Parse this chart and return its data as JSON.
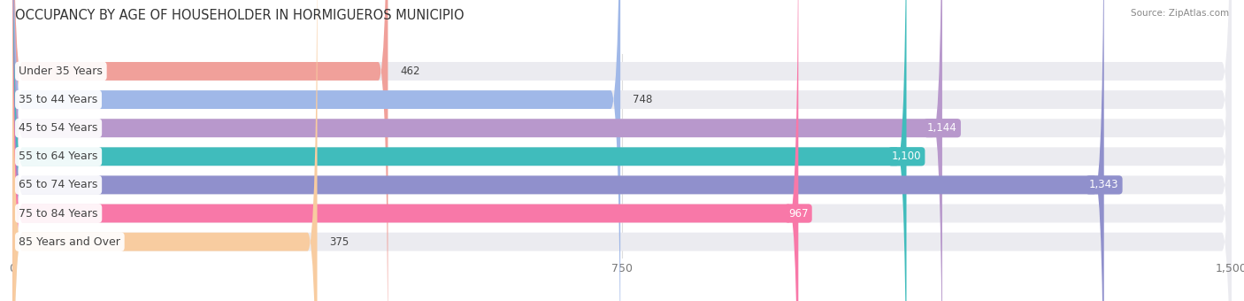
{
  "title": "OCCUPANCY BY AGE OF HOUSEHOLDER IN HORMIGUEROS MUNICIPIO",
  "source": "Source: ZipAtlas.com",
  "categories": [
    "Under 35 Years",
    "35 to 44 Years",
    "45 to 54 Years",
    "55 to 64 Years",
    "65 to 74 Years",
    "75 to 84 Years",
    "85 Years and Over"
  ],
  "values": [
    462,
    748,
    1144,
    1100,
    1343,
    967,
    375
  ],
  "bar_colors": [
    "#f0a09a",
    "#a0b8e8",
    "#b898cc",
    "#40bcbc",
    "#9090cc",
    "#f878a8",
    "#f8cca0"
  ],
  "bar_bg_color": "#ebebf0",
  "xlim_max": 1500,
  "xticks": [
    0,
    750,
    1500
  ],
  "title_fontsize": 10.5,
  "label_fontsize": 9,
  "value_fontsize": 8.5,
  "background_color": "#ffffff",
  "bar_height": 0.65,
  "label_bg_color": "#ffffff",
  "label_text_color": "#444444",
  "value_color_white": "#ffffff",
  "value_color_dark": "#555555",
  "value_inside_threshold": 900,
  "tick_color": "#aaaaaa",
  "grid_color": "#dddddd"
}
